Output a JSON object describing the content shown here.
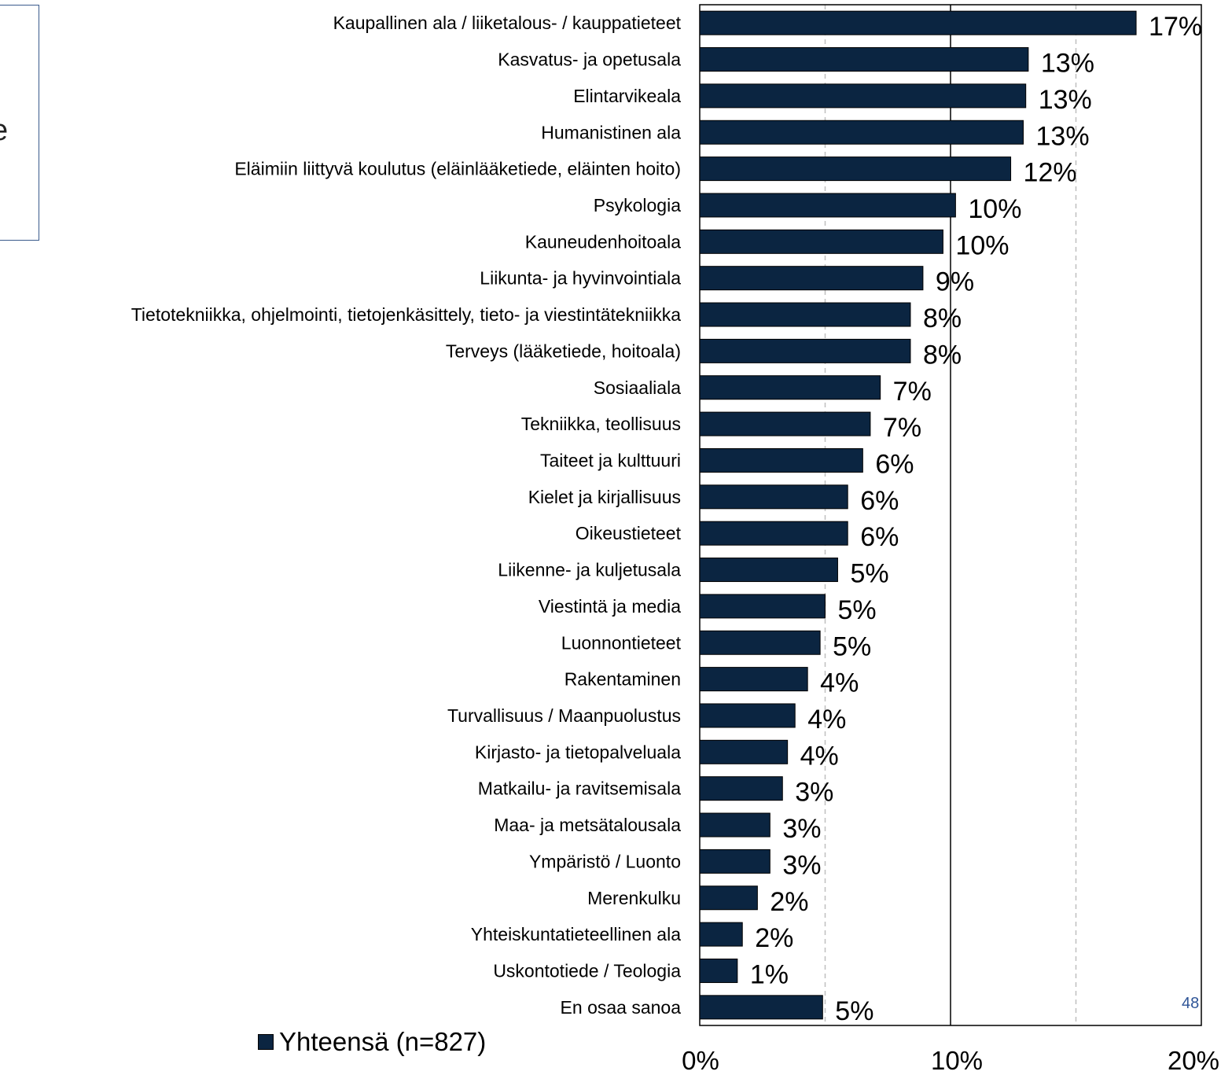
{
  "side_box": {
    "text": "e"
  },
  "page_number": "48",
  "legend": {
    "label": "Yhteensä (n=827)",
    "color": "#0b2541"
  },
  "chart_data": {
    "type": "bar",
    "orientation": "horizontal",
    "title": "",
    "xlabel": "",
    "ylabel": "",
    "xlim": [
      0,
      20
    ],
    "x_ticks": [
      "0%",
      "10%",
      "20%"
    ],
    "grid": "vertical dashed at 5% and 15%, solid at 10%",
    "legend_position": "bottom-left",
    "bar_color": "#0b2541",
    "categories": [
      "Kaupallinen ala / liiketalous- / kauppatieteet",
      "Kasvatus- ja opetusala",
      "Elintarvikeala",
      "Humanistinen ala",
      "Eläimiin liittyvä koulutus (eläinlääketiede, eläinten hoito)",
      "Psykologia",
      "Kauneudenhoitoala",
      "Liikunta- ja hyvinvointiala",
      "Tietotekniikka, ohjelmointi, tietojenkäsittely, tieto- ja viestintätekniikka",
      "Terveys (lääketiede, hoitoala)",
      "Sosiaaliala",
      "Tekniikka, teollisuus",
      "Taiteet ja kulttuuri",
      "Kielet ja kirjallisuus",
      "Oikeustieteet",
      "Liikenne- ja kuljetusala",
      "Viestintä ja media",
      "Luonnontieteet",
      "Rakentaminen",
      "Turvallisuus / Maanpuolustus",
      "Kirjasto- ja tietopalveluala",
      "Matkailu- ja ravitsemisala",
      "Maa- ja metsätalousala",
      "Ympäristö / Luonto",
      "Merenkulku",
      "Yhteiskuntatieteellinen ala",
      "Uskontotiede / Teologia",
      "En osaa sanoa"
    ],
    "series": [
      {
        "name": "Yhteensä (n=827)",
        "values": [
          17.4,
          13.1,
          13.0,
          12.9,
          12.4,
          10.2,
          9.7,
          8.9,
          8.4,
          8.4,
          7.2,
          6.8,
          6.5,
          5.9,
          5.9,
          5.5,
          5.0,
          4.8,
          4.3,
          3.8,
          3.5,
          3.3,
          2.8,
          2.8,
          2.3,
          1.7,
          1.5,
          4.9
        ],
        "labels": [
          "17%",
          "13%",
          "13%",
          "13%",
          "12%",
          "10%",
          "10%",
          "9%",
          "8%",
          "8%",
          "7%",
          "7%",
          "6%",
          "6%",
          "6%",
          "5%",
          "5%",
          "5%",
          "4%",
          "4%",
          "4%",
          "3%",
          "3%",
          "3%",
          "2%",
          "2%",
          "1%",
          "5%"
        ]
      }
    ]
  }
}
